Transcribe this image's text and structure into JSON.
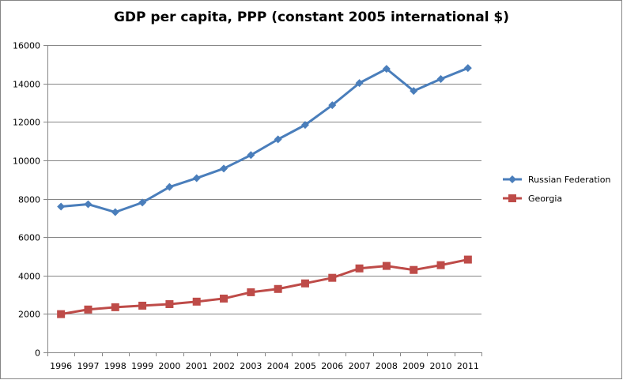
{
  "chart_data": {
    "type": "line",
    "title": "GDP per capita, PPP (constant 2005 international $)",
    "xlabel": "",
    "ylabel": "",
    "categories": [
      "1996",
      "1997",
      "1998",
      "1999",
      "2000",
      "2001",
      "2002",
      "2003",
      "2004",
      "2005",
      "2006",
      "2007",
      "2008",
      "2009",
      "2010",
      "2011"
    ],
    "ylim": [
      0,
      16000
    ],
    "yticks": [
      0,
      2000,
      4000,
      6000,
      8000,
      10000,
      12000,
      14000,
      16000
    ],
    "grid": true,
    "legend": "right",
    "series": [
      {
        "name": "Russian Federation",
        "color": "#4a7ebb",
        "marker": "diamond",
        "values": [
          7590,
          7710,
          7300,
          7800,
          8610,
          9070,
          9570,
          10270,
          11090,
          11840,
          12870,
          14020,
          14760,
          13610,
          14230,
          14800
        ]
      },
      {
        "name": "Georgia",
        "color": "#be4b48",
        "marker": "square",
        "values": [
          1990,
          2230,
          2350,
          2430,
          2510,
          2640,
          2800,
          3130,
          3300,
          3590,
          3880,
          4370,
          4500,
          4290,
          4540,
          4830
        ]
      }
    ]
  }
}
